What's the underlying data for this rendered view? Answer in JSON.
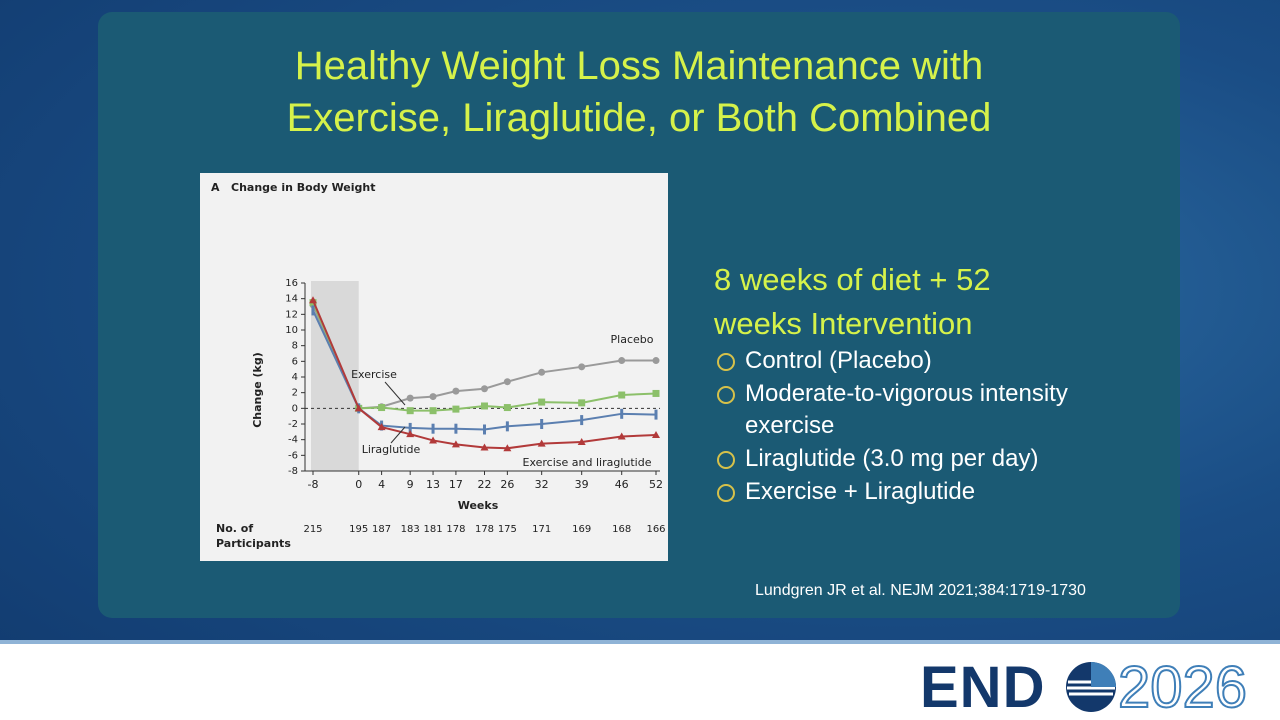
{
  "title_lines": [
    "Healthy Weight Loss Maintenance with",
    "Exercise, Liraglutide, or Both Combined"
  ],
  "chart_data": {
    "type": "line",
    "panel": "A",
    "title": "Change in Body Weight",
    "y_label": "Change (kg)",
    "x_label": "Weeks",
    "participants_label": [
      "No. of",
      "Participants"
    ],
    "x": [
      -8,
      0,
      4,
      9,
      13,
      17,
      22,
      26,
      32,
      39,
      46,
      52
    ],
    "xlim": [
      -8,
      52
    ],
    "xticks": [
      -8,
      0,
      4,
      9,
      13,
      17,
      22,
      26,
      32,
      39,
      46,
      52
    ],
    "ylim": [
      -8,
      16
    ],
    "yticks": [
      -8,
      -6,
      -4,
      -2,
      0,
      2,
      4,
      6,
      8,
      10,
      12,
      14,
      16
    ],
    "participants": [
      215,
      195,
      187,
      183,
      181,
      178,
      178,
      175,
      171,
      169,
      168,
      166
    ],
    "series": [
      {
        "name": "Placebo",
        "color": "#9a9a9a",
        "values": [
          13.2,
          0,
          0.2,
          1.3,
          1.5,
          2.2,
          2.5,
          3.4,
          4.6,
          5.3,
          6.1,
          6.1
        ]
      },
      {
        "name": "Exercise",
        "color": "#8cc06a",
        "values": [
          13.5,
          0,
          0.1,
          -0.3,
          -0.3,
          -0.1,
          0.3,
          0.1,
          0.8,
          0.7,
          1.7,
          1.9
        ]
      },
      {
        "name": "Liraglutide",
        "color": "#5b7fb0",
        "values": [
          12.5,
          0,
          -2.2,
          -2.5,
          -2.6,
          -2.6,
          -2.7,
          -2.3,
          -2.0,
          -1.5,
          -0.7,
          -0.8
        ]
      },
      {
        "name": "Exercise and liraglutide",
        "color": "#b23a3a",
        "values": [
          13.8,
          0,
          -2.4,
          -3.3,
          -4.1,
          -4.6,
          -5.0,
          -5.1,
          -4.5,
          -4.3,
          -3.6,
          -3.4
        ]
      }
    ]
  },
  "heading": "8 weeks of diet + 52 weeks Intervention",
  "bullets": [
    "Control (Placebo)",
    "Moderate-to-vigorous intensity exercise",
    "Liraglutide (3.0 mg per day)",
    "Exercise + Liraglutide"
  ],
  "citation": "Lundgren JR et al. NEJM 2021;384:1719-1730",
  "logo": {
    "left": "END",
    "right": "2026"
  }
}
